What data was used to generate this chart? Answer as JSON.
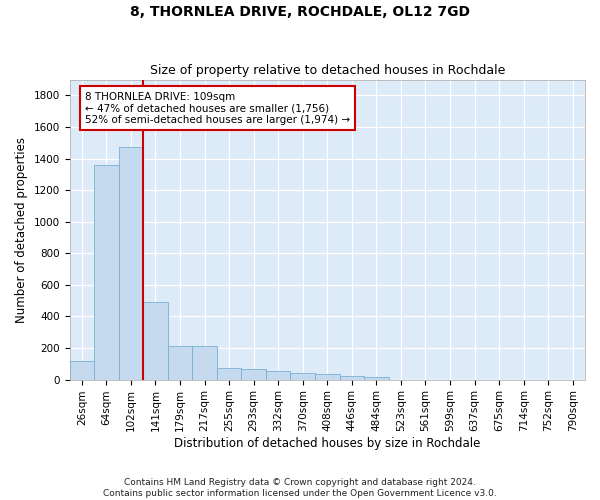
{
  "title": "8, THORNLEA DRIVE, ROCHDALE, OL12 7GD",
  "subtitle": "Size of property relative to detached houses in Rochdale",
  "xlabel": "Distribution of detached houses by size in Rochdale",
  "ylabel": "Number of detached properties",
  "categories": [
    "26sqm",
    "64sqm",
    "102sqm",
    "141sqm",
    "179sqm",
    "217sqm",
    "255sqm",
    "293sqm",
    "332sqm",
    "370sqm",
    "408sqm",
    "446sqm",
    "484sqm",
    "523sqm",
    "561sqm",
    "599sqm",
    "637sqm",
    "675sqm",
    "714sqm",
    "752sqm",
    "790sqm"
  ],
  "values": [
    120,
    1360,
    1470,
    490,
    215,
    215,
    75,
    65,
    55,
    40,
    35,
    20,
    15,
    0,
    0,
    0,
    0,
    0,
    0,
    0,
    0
  ],
  "bar_color": "#c5d9ef",
  "bar_edge_color": "#7bafd4",
  "vline_x_index": 2,
  "vline_color": "#cc0000",
  "annotation_text": "8 THORNLEA DRIVE: 109sqm\n← 47% of detached houses are smaller (1,756)\n52% of semi-detached houses are larger (1,974) →",
  "annotation_box_color": "#cc0000",
  "annotation_bg": "white",
  "ylim": [
    0,
    1900
  ],
  "yticks": [
    0,
    200,
    400,
    600,
    800,
    1000,
    1200,
    1400,
    1600,
    1800
  ],
  "background_color": "#ddeaf7",
  "footer": "Contains HM Land Registry data © Crown copyright and database right 2024.\nContains public sector information licensed under the Open Government Licence v3.0.",
  "title_fontsize": 10,
  "subtitle_fontsize": 9,
  "axis_label_fontsize": 8.5,
  "tick_fontsize": 7.5,
  "annotation_fontsize": 7.5,
  "footer_fontsize": 6.5
}
